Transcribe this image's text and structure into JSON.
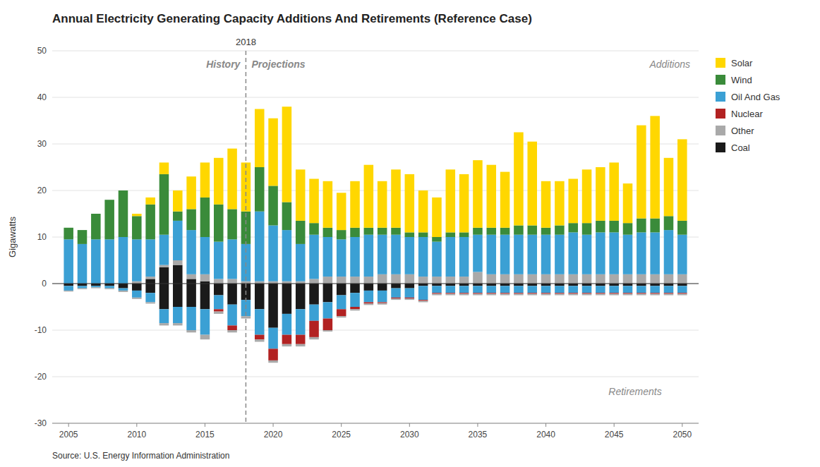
{
  "chart_data": {
    "type": "bar",
    "stacked": true,
    "title": "Annual Electricity Generating Capacity Additions And Retirements (Reference Case)",
    "y_label": "Gigawatts",
    "source": "Source: U.S. Energy Information Administration",
    "annotations": [
      {
        "text": "2018",
        "x": 2018
      },
      {
        "text": "History"
      },
      {
        "text": "Projections"
      },
      {
        "text": "Additions"
      },
      {
        "text": "Retirements"
      }
    ],
    "x": [
      2005,
      2006,
      2007,
      2008,
      2009,
      2010,
      2011,
      2012,
      2013,
      2014,
      2015,
      2016,
      2017,
      2018,
      2019,
      2020,
      2021,
      2022,
      2023,
      2024,
      2025,
      2026,
      2027,
      2028,
      2029,
      2030,
      2031,
      2032,
      2033,
      2034,
      2035,
      2036,
      2037,
      2038,
      2039,
      2040,
      2041,
      2042,
      2043,
      2044,
      2045,
      2046,
      2047,
      2048,
      2049,
      2050
    ],
    "xlim": [
      2003.8,
      2051.2
    ],
    "xticks": [
      2005,
      2010,
      2015,
      2020,
      2025,
      2030,
      2035,
      2040,
      2045,
      2050
    ],
    "ylim": [
      -30,
      50
    ],
    "yticks": [
      -30,
      -20,
      -10,
      0,
      10,
      20,
      30,
      40,
      50
    ],
    "grid": true,
    "legend": "right",
    "series": [
      {
        "name": "Coal",
        "color": "#1A1A1A",
        "values": [
          0.0,
          0.0,
          0.0,
          0.0,
          0.0,
          0.0,
          1.0,
          3.5,
          4.0,
          1.0,
          0.5,
          0.0,
          0.0,
          0.0,
          0.0,
          0.0,
          0.0,
          0.0,
          0.0,
          0.0,
          0.0,
          0.0,
          0.0,
          0.0,
          0.0,
          0.0,
          0.0,
          0.0,
          0.0,
          0.0,
          0.0,
          0.0,
          0.0,
          0.0,
          0.0,
          0.0,
          0.0,
          0.0,
          0.0,
          0.0,
          0.0,
          0.0,
          0.0,
          0.0,
          0.0,
          0.0
        ]
      },
      {
        "name": "Other",
        "color": "#A9A9A9",
        "values": [
          0.0,
          0.0,
          0.0,
          0.0,
          0.0,
          0.5,
          0.5,
          0.5,
          1.0,
          1.0,
          1.5,
          1.0,
          1.0,
          0.5,
          0.5,
          0.5,
          0.5,
          0.5,
          1.0,
          1.5,
          1.5,
          1.5,
          1.5,
          2.0,
          2.0,
          2.0,
          1.5,
          1.5,
          1.5,
          1.5,
          2.5,
          2.0,
          2.0,
          2.0,
          2.0,
          2.0,
          2.0,
          2.0,
          2.0,
          2.0,
          2.0,
          2.0,
          2.0,
          2.0,
          2.0,
          2.0
        ]
      },
      {
        "name": "Oil And Gas",
        "color": "#3BA0D4",
        "values": [
          9.5,
          8.5,
          9.5,
          9.5,
          10.0,
          9.0,
          8.0,
          6.5,
          8.5,
          9.5,
          8.0,
          8.0,
          8.5,
          8.0,
          15.0,
          12.0,
          11.0,
          8.0,
          9.5,
          8.5,
          8.0,
          8.5,
          9.0,
          8.5,
          8.5,
          8.0,
          8.5,
          7.5,
          8.5,
          8.5,
          8.0,
          8.5,
          8.5,
          8.5,
          8.5,
          8.5,
          8.5,
          9.0,
          8.5,
          9.0,
          9.0,
          8.5,
          9.0,
          9.0,
          9.5,
          8.5
        ]
      },
      {
        "name": "Wind",
        "color": "#3A8B3A",
        "values": [
          2.5,
          3.0,
          5.5,
          8.5,
          10.0,
          5.0,
          7.5,
          13.0,
          2.0,
          4.5,
          8.5,
          8.0,
          6.5,
          7.0,
          9.5,
          8.5,
          6.0,
          5.0,
          2.5,
          2.0,
          2.0,
          2.0,
          1.5,
          1.5,
          1.5,
          1.0,
          1.0,
          1.0,
          1.0,
          1.0,
          1.5,
          1.5,
          1.5,
          2.0,
          2.0,
          1.5,
          2.0,
          2.0,
          2.5,
          2.5,
          2.5,
          2.5,
          3.0,
          3.0,
          3.0,
          3.0
        ]
      },
      {
        "name": "Solar",
        "color": "#FFD700",
        "values": [
          0.0,
          0.0,
          0.0,
          0.0,
          0.0,
          0.5,
          1.5,
          2.5,
          4.5,
          7.0,
          7.5,
          10.0,
          13.0,
          10.5,
          12.5,
          14.5,
          20.5,
          11.0,
          9.5,
          10.0,
          8.0,
          10.0,
          13.5,
          10.0,
          12.5,
          12.5,
          9.0,
          8.5,
          13.5,
          12.5,
          14.5,
          13.5,
          12.0,
          20.0,
          18.0,
          10.0,
          9.5,
          9.5,
          11.5,
          11.5,
          12.5,
          8.5,
          20.0,
          22.0,
          12.5,
          17.5
        ]
      },
      {
        "name": "Coal",
        "color": "#1A1A1A",
        "values": [
          -0.5,
          -0.5,
          -0.5,
          -0.5,
          -1.0,
          -1.5,
          -2.0,
          -5.5,
          -5.0,
          -5.0,
          -5.5,
          -2.5,
          -4.5,
          -3.5,
          -5.5,
          -9.5,
          -6.5,
          -5.5,
          -4.5,
          -4.0,
          -2.5,
          -2.0,
          -1.5,
          -1.5,
          -1.0,
          -1.0,
          -0.5,
          -0.5,
          -0.5,
          -0.5,
          -0.5,
          -0.5,
          -0.5,
          -0.5,
          -0.5,
          -0.5,
          -0.5,
          -0.5,
          -0.5,
          -0.5,
          -0.5,
          -0.5,
          -0.5,
          -0.5,
          -0.5,
          -0.5
        ]
      },
      {
        "name": "Oil And Gas",
        "color": "#3BA0D4",
        "values": [
          -1.0,
          -0.5,
          -0.3,
          -0.5,
          -0.5,
          -1.5,
          -2.0,
          -3.0,
          -3.5,
          -5.0,
          -5.5,
          -3.0,
          -4.5,
          -3.5,
          -5.5,
          -4.5,
          -4.5,
          -5.5,
          -3.5,
          -3.5,
          -3.0,
          -3.0,
          -2.5,
          -2.5,
          -2.0,
          -2.0,
          -3.0,
          -1.5,
          -1.5,
          -1.5,
          -1.5,
          -1.5,
          -1.5,
          -1.5,
          -1.5,
          -1.5,
          -1.5,
          -1.5,
          -1.5,
          -1.5,
          -1.5,
          -1.5,
          -1.5,
          -1.5,
          -1.5,
          -1.5
        ]
      },
      {
        "name": "Nuclear",
        "color": "#B22222",
        "values": [
          0.0,
          0.0,
          0.0,
          0.0,
          0.0,
          0.0,
          0.0,
          0.0,
          0.0,
          0.0,
          0.0,
          -0.5,
          -1.0,
          0.0,
          -1.0,
          -2.5,
          -2.0,
          -2.0,
          -3.5,
          -2.5,
          -1.5,
          -0.5,
          -0.3,
          -0.2,
          -0.2,
          -0.2,
          -0.2,
          -0.2,
          -0.2,
          -0.2,
          -0.2,
          -0.2,
          -0.2,
          -0.2,
          -0.2,
          -0.2,
          -0.2,
          -0.2,
          -0.2,
          -0.2,
          -0.2,
          -0.2,
          -0.2,
          -0.2,
          -0.2,
          -0.2
        ]
      },
      {
        "name": "Other",
        "color": "#A9A9A9",
        "values": [
          -0.2,
          -0.2,
          -0.2,
          -0.2,
          -0.3,
          -0.3,
          -0.3,
          -0.5,
          -0.5,
          -0.5,
          -1.0,
          -0.5,
          -0.5,
          -0.5,
          -0.5,
          -0.5,
          -0.5,
          -0.5,
          -0.5,
          -0.3,
          -0.3,
          -0.3,
          -0.3,
          -0.3,
          -0.3,
          -0.3,
          -0.3,
          -0.3,
          -0.3,
          -0.3,
          -0.3,
          -0.3,
          -0.3,
          -0.3,
          -0.3,
          -0.3,
          -0.3,
          -0.3,
          -0.3,
          -0.3,
          -0.3,
          -0.3,
          -0.3,
          -0.3,
          -0.3,
          -0.3
        ]
      }
    ]
  }
}
